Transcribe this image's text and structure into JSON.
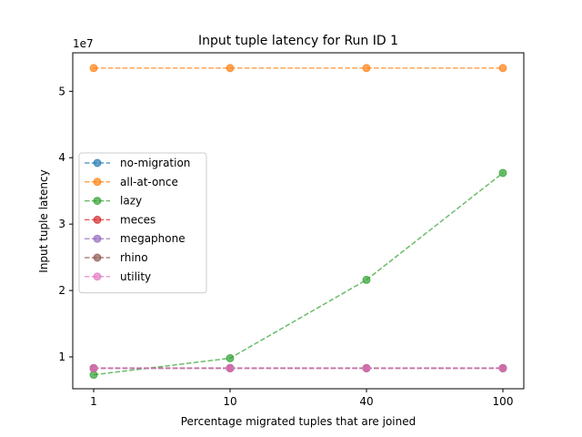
{
  "chart_data": {
    "type": "line",
    "title": "Input tuple latency for Run ID 1",
    "xlabel": "Percentage migrated tuples that are joined",
    "ylabel": "Input tuple latency",
    "y_scale_label": "1e7",
    "categories": [
      "1",
      "10",
      "40",
      "100"
    ],
    "y_ticks": [
      1,
      2,
      3,
      4,
      5
    ],
    "y_multiplier": 10000000,
    "ylim": [
      5200000,
      55800000
    ],
    "grid": false,
    "legend_position": "center-left",
    "series": [
      {
        "name": "no-migration",
        "color": "#1f77b4",
        "values": [
          8300000,
          8300000,
          8300000,
          8300000
        ]
      },
      {
        "name": "all-at-once",
        "color": "#ff7f0e",
        "values": [
          53500000,
          53500000,
          53500000,
          53500000
        ]
      },
      {
        "name": "lazy",
        "color": "#2ca02c",
        "values": [
          7300000,
          9800000,
          21600000,
          37700000
        ]
      },
      {
        "name": "meces",
        "color": "#d62728",
        "values": [
          8300000,
          8300000,
          8300000,
          8300000
        ]
      },
      {
        "name": "megaphone",
        "color": "#9467bd",
        "values": [
          8300000,
          8300000,
          8300000,
          8300000
        ]
      },
      {
        "name": "rhino",
        "color": "#8c564b",
        "values": [
          8300000,
          8300000,
          8300000,
          8300000
        ]
      },
      {
        "name": "utility",
        "color": "#e377c2",
        "values": [
          8300000,
          8300000,
          8300000,
          8300000
        ]
      }
    ]
  }
}
